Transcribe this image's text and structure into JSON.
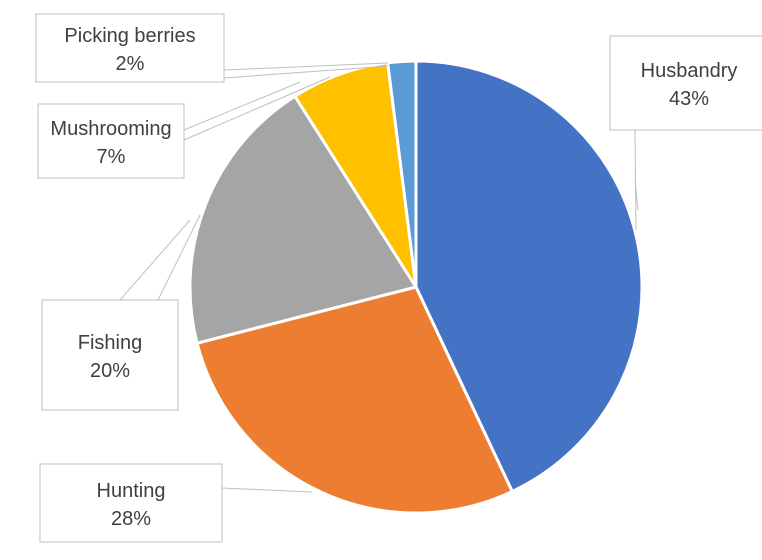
{
  "chart_data": {
    "type": "pie",
    "title": "",
    "categories": [
      "Husbandry",
      "Hunting",
      "Fishing",
      "Mushrooming",
      "Picking berries"
    ],
    "values": [
      43,
      28,
      20,
      7,
      2
    ],
    "labels": [
      "43%",
      "28%",
      "20%",
      "7%",
      "2%"
    ],
    "colors": [
      "#4472c4",
      "#ed7d31",
      "#a5a5a5",
      "#ffc000",
      "#5b9bd5"
    ]
  }
}
